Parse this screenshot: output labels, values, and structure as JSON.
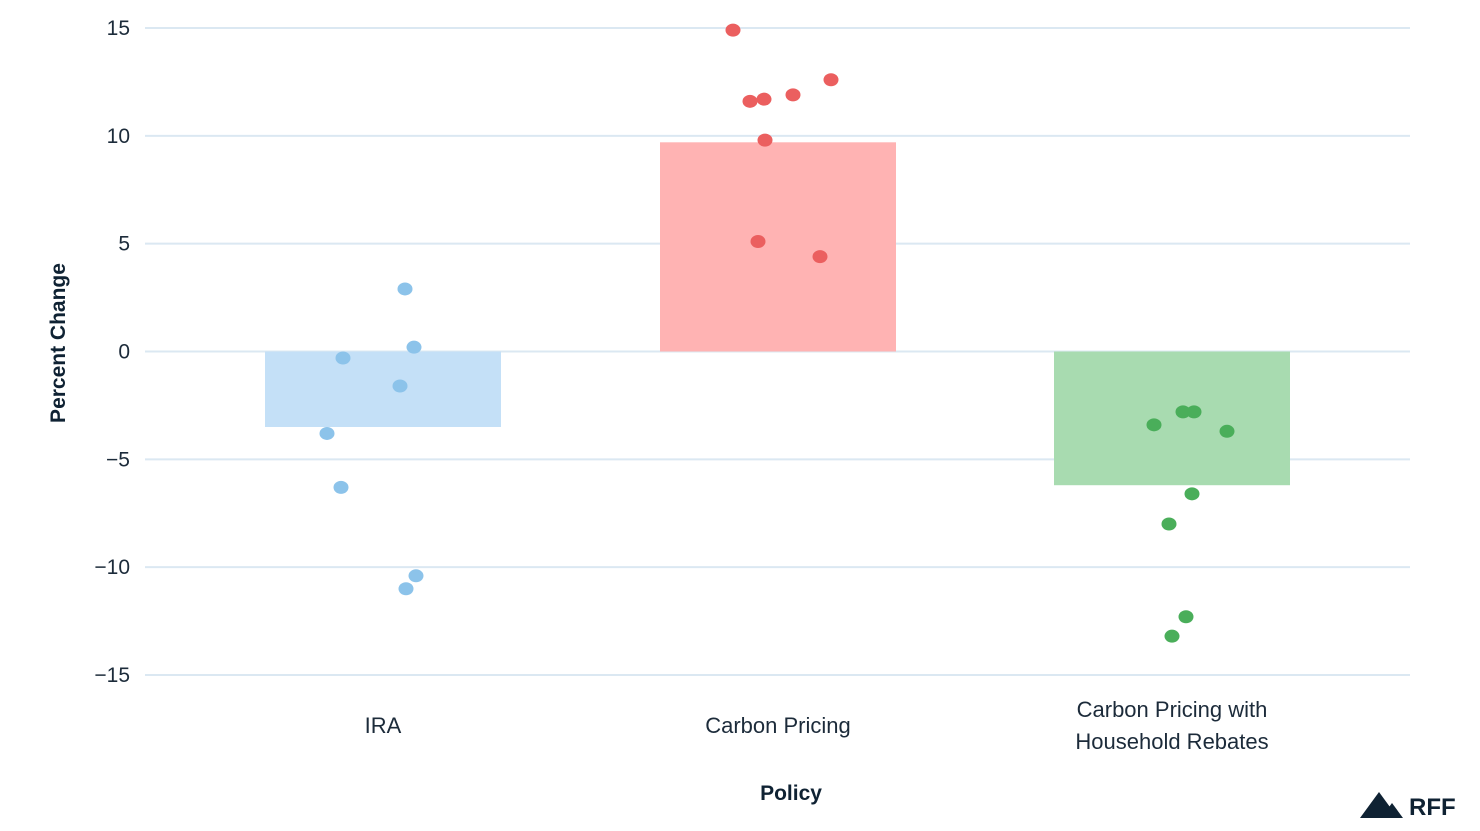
{
  "chart_data": {
    "type": "bar",
    "categories": [
      "IRA",
      "Carbon Pricing",
      "Carbon Pricing with Household Rebates"
    ],
    "category_label_lines": [
      [
        "IRA"
      ],
      [
        "Carbon Pricing"
      ],
      [
        "Carbon Pricing with",
        "Household Rebates"
      ]
    ],
    "values": [
      -3.5,
      9.7,
      -6.2
    ],
    "points": [
      [
        2.9,
        0.2,
        -0.3,
        -1.6,
        -3.8,
        -6.3,
        -10.4,
        -11.0
      ],
      [
        14.9,
        12.6,
        11.9,
        11.7,
        11.6,
        9.8,
        5.1,
        4.4
      ],
      [
        -2.8,
        -2.8,
        -3.4,
        -3.7,
        -6.6,
        -8.0,
        -12.3,
        -13.2
      ]
    ],
    "colors": {
      "bars": [
        "#c4e0f7",
        "#ffb3b3",
        "#a8dbb0"
      ],
      "points": [
        "#8cc3ea",
        "#eb5f5f",
        "#4aae5a"
      ],
      "grid": "#dbe8f2",
      "text": "#1c2b3a"
    },
    "xlabel": "Policy",
    "ylabel": "Percent Change",
    "ylim": [
      -15,
      15
    ],
    "yticks": [
      15,
      10,
      5,
      0,
      -5,
      -10,
      -15
    ],
    "ytick_labels": [
      "15",
      "10",
      "5",
      "0",
      "−5",
      "−10",
      "−15"
    ],
    "grid": true,
    "legend": "none"
  },
  "logo": {
    "text": "RFF",
    "icon": "mountain-icon"
  }
}
